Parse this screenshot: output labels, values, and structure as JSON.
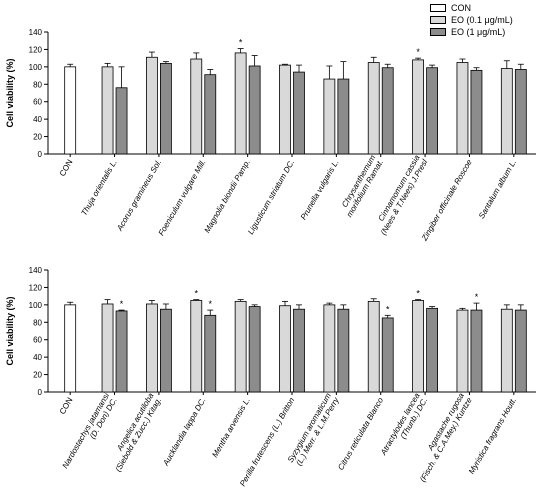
{
  "legend": {
    "items": [
      {
        "label": "CON",
        "color": "#ffffff"
      },
      {
        "label": "EO (0.1 μg/mL)",
        "color": "#d9d9d9"
      },
      {
        "label": "EO (1 μg/mL)",
        "color": "#8c8c8c"
      }
    ]
  },
  "chart_data": [
    {
      "type": "bar",
      "ylabel": "Cell viability (%)",
      "ylim": [
        0,
        140
      ],
      "yticks": [
        0,
        20,
        40,
        60,
        80,
        100,
        120,
        140
      ],
      "categories": [
        "CON",
        "Thuja orientalis L.",
        "Acorus gramineus Sol.",
        "Foeniculum vulgare Mill.",
        "Magnolia biondii Pamp.",
        "Ligusticum striatum DC.",
        "Prunella vulgaris L.",
        "Chrysanthemum\nmorifolium Ramat.",
        "Cinnamomum cassia\n(Nees & T.Nees) J.Presl",
        "Zingiber officinale Roscoe",
        "Santalum album L."
      ],
      "series": [
        {
          "name": "CON",
          "values": [
            100,
            null,
            null,
            null,
            null,
            null,
            null,
            null,
            null,
            null,
            null
          ],
          "errors": [
            3,
            null,
            null,
            null,
            null,
            null,
            null,
            null,
            null,
            null,
            null
          ]
        },
        {
          "name": "EO (0.1 μg/mL)",
          "values": [
            null,
            100,
            111,
            109,
            116,
            102,
            86,
            105,
            108,
            105,
            98
          ],
          "errors": [
            null,
            4,
            6,
            7,
            5,
            1,
            15,
            6,
            2,
            4,
            9
          ]
        },
        {
          "name": "EO (1 μg/mL)",
          "values": [
            null,
            76,
            104,
            91,
            101,
            94,
            86,
            99,
            99,
            96,
            97
          ],
          "errors": [
            null,
            24,
            2,
            6,
            12,
            8,
            20,
            4,
            3,
            3,
            6
          ]
        }
      ],
      "significance": [
        {
          "category_index": 4,
          "series_index": 1,
          "mark": "*"
        },
        {
          "category_index": 8,
          "series_index": 1,
          "mark": "*"
        }
      ]
    },
    {
      "type": "bar",
      "ylabel": "Cell viability (%)",
      "ylim": [
        0,
        140
      ],
      "yticks": [
        0,
        20,
        40,
        60,
        80,
        100,
        120,
        140
      ],
      "categories": [
        "CON",
        "Nardostachys jatamansi\n(D. Don) DC.",
        "Angelica acutiloba\n(Siebold & Zucc.) Kitag.",
        "Aucklandia lappa DC.",
        "Mentha arvensis L.",
        "Perilla frutescens (L.) Britton",
        "Syzygium aromaticum\n(L.) Merr. & L.M.Perry",
        "Citrus reticulata Blanco",
        "Atractylodes lancea\n(Thunb.) DC.",
        "Agastache rugosa\n(Fisch. & C.A.Mey.) Kuntze",
        "Myristica fragrans Houtt."
      ],
      "series": [
        {
          "name": "CON",
          "values": [
            100,
            null,
            null,
            null,
            null,
            null,
            null,
            null,
            null,
            null,
            null
          ],
          "errors": [
            3,
            null,
            null,
            null,
            null,
            null,
            null,
            null,
            null,
            null,
            null
          ]
        },
        {
          "name": "EO (0.1 μg/mL)",
          "values": [
            null,
            101,
            101,
            105,
            104,
            99,
            100,
            104,
            105,
            94,
            95
          ],
          "errors": [
            null,
            5,
            4,
            1,
            2,
            5,
            2,
            3,
            1,
            2,
            5
          ]
        },
        {
          "name": "EO (1 μg/mL)",
          "values": [
            null,
            93,
            95,
            88,
            98,
            95,
            95,
            85,
            96,
            94,
            94
          ],
          "errors": [
            null,
            1,
            6,
            6,
            2,
            5,
            5,
            3,
            2,
            8,
            6
          ]
        }
      ],
      "significance": [
        {
          "category_index": 1,
          "series_index": 2,
          "mark": "*"
        },
        {
          "category_index": 3,
          "series_index": 1,
          "mark": "*"
        },
        {
          "category_index": 3,
          "series_index": 2,
          "mark": "*"
        },
        {
          "category_index": 7,
          "series_index": 2,
          "mark": "*"
        },
        {
          "category_index": 8,
          "series_index": 1,
          "mark": "*"
        },
        {
          "category_index": 9,
          "series_index": 2,
          "mark": "*"
        }
      ]
    }
  ]
}
